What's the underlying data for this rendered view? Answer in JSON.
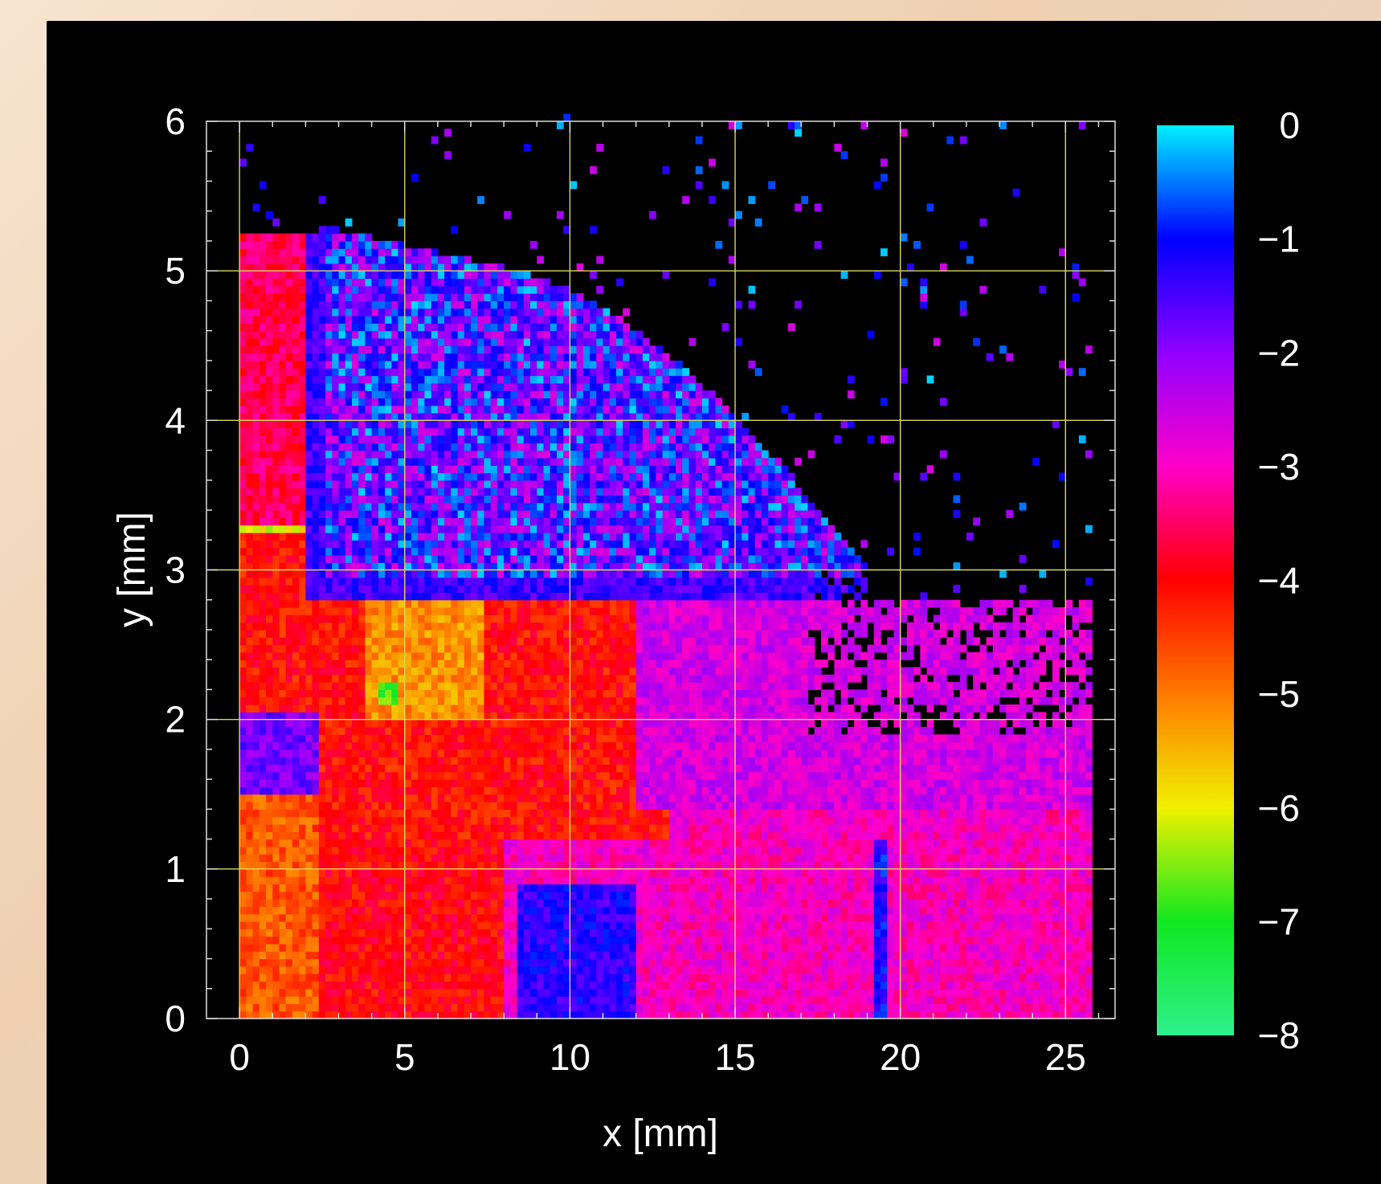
{
  "chart_data": {
    "type": "heatmap",
    "title": "",
    "xlabel": "x [mm]",
    "ylabel": "y [mm]",
    "xlim": [
      -1,
      26.5
    ],
    "ylim": [
      0,
      6
    ],
    "x_ticks": [
      "0",
      "5",
      "10",
      "15",
      "20",
      "25"
    ],
    "y_ticks": [
      "0",
      "1",
      "2",
      "3",
      "4",
      "5",
      "6"
    ],
    "grid": true,
    "colorbar": {
      "range": [
        -8,
        0
      ],
      "ticks": [
        "0",
        "−1",
        "−2",
        "−3",
        "−4",
        "−5",
        "−6",
        "−7",
        "−8"
      ],
      "colormap": [
        {
          "value": -8,
          "color": "#2ef08c"
        },
        {
          "value": -7,
          "color": "#10e820"
        },
        {
          "value": -6,
          "color": "#f0f000"
        },
        {
          "value": -5,
          "color": "#ff7a00"
        },
        {
          "value": -4,
          "color": "#ff0000"
        },
        {
          "value": -3,
          "color": "#ff00c8"
        },
        {
          "value": -2,
          "color": "#9000ff"
        },
        {
          "value": -1,
          "color": "#0000ff"
        },
        {
          "value": 0,
          "color": "#00f0ff"
        }
      ]
    },
    "regions": [
      {
        "desc": "base_left",
        "x": [
          0,
          2.4
        ],
        "y": [
          0,
          1.5
        ],
        "value": -4.7
      },
      {
        "desc": "base_mid",
        "x": [
          2.4,
          8
        ],
        "y": [
          0,
          1.2
        ],
        "value": -4.0
      },
      {
        "desc": "base_right",
        "x": [
          8,
          26
        ],
        "y": [
          0,
          1.8
        ],
        "value": -3.0
      },
      {
        "desc": "blue_strip_low",
        "x": [
          8.5,
          12
        ],
        "y": [
          0,
          0.9
        ],
        "value": -1.3
      },
      {
        "desc": "blue_strip_x19",
        "x": [
          19.2,
          19.6
        ],
        "y": [
          0,
          1.2
        ],
        "value": -1.1
      },
      {
        "desc": "blue_band_left",
        "x": [
          0,
          2.4
        ],
        "y": [
          1.5,
          2.05
        ],
        "value": -1.8
      },
      {
        "desc": "red_core",
        "x": [
          2.4,
          13
        ],
        "y": [
          1.2,
          2.9
        ],
        "value": -4.1
      },
      {
        "desc": "orange_hotspot",
        "x": [
          3.8,
          7.5
        ],
        "y": [
          2.0,
          2.9
        ],
        "value": -5.2
      },
      {
        "desc": "green_hotspot",
        "x": [
          4.2,
          4.8
        ],
        "y": [
          2.1,
          2.25
        ],
        "value": -6.8
      },
      {
        "desc": "red_left_column",
        "x": [
          0,
          2.4
        ],
        "y": [
          2.05,
          3.3
        ],
        "value": -4.1
      },
      {
        "desc": "yellow_line",
        "x": [
          0,
          2.4
        ],
        "y": [
          3.25,
          3.3
        ],
        "value": -6.0
      },
      {
        "desc": "mixed_left_column",
        "x": [
          0,
          2.4
        ],
        "y": [
          3.3,
          5.25
        ],
        "value": -3.6
      },
      {
        "desc": "blue_cloud",
        "x": [
          5,
          19
        ],
        "y": [
          2.9,
          5.1
        ],
        "value": -1.6
      },
      {
        "desc": "magenta_plume",
        "x": [
          12,
          26
        ],
        "y": [
          1.4,
          2.8
        ],
        "value": -2.6
      },
      {
        "desc": "sparse_scatter",
        "x": [
          2,
          26
        ],
        "y": [
          2.8,
          6
        ],
        "value": -1.4
      }
    ]
  }
}
